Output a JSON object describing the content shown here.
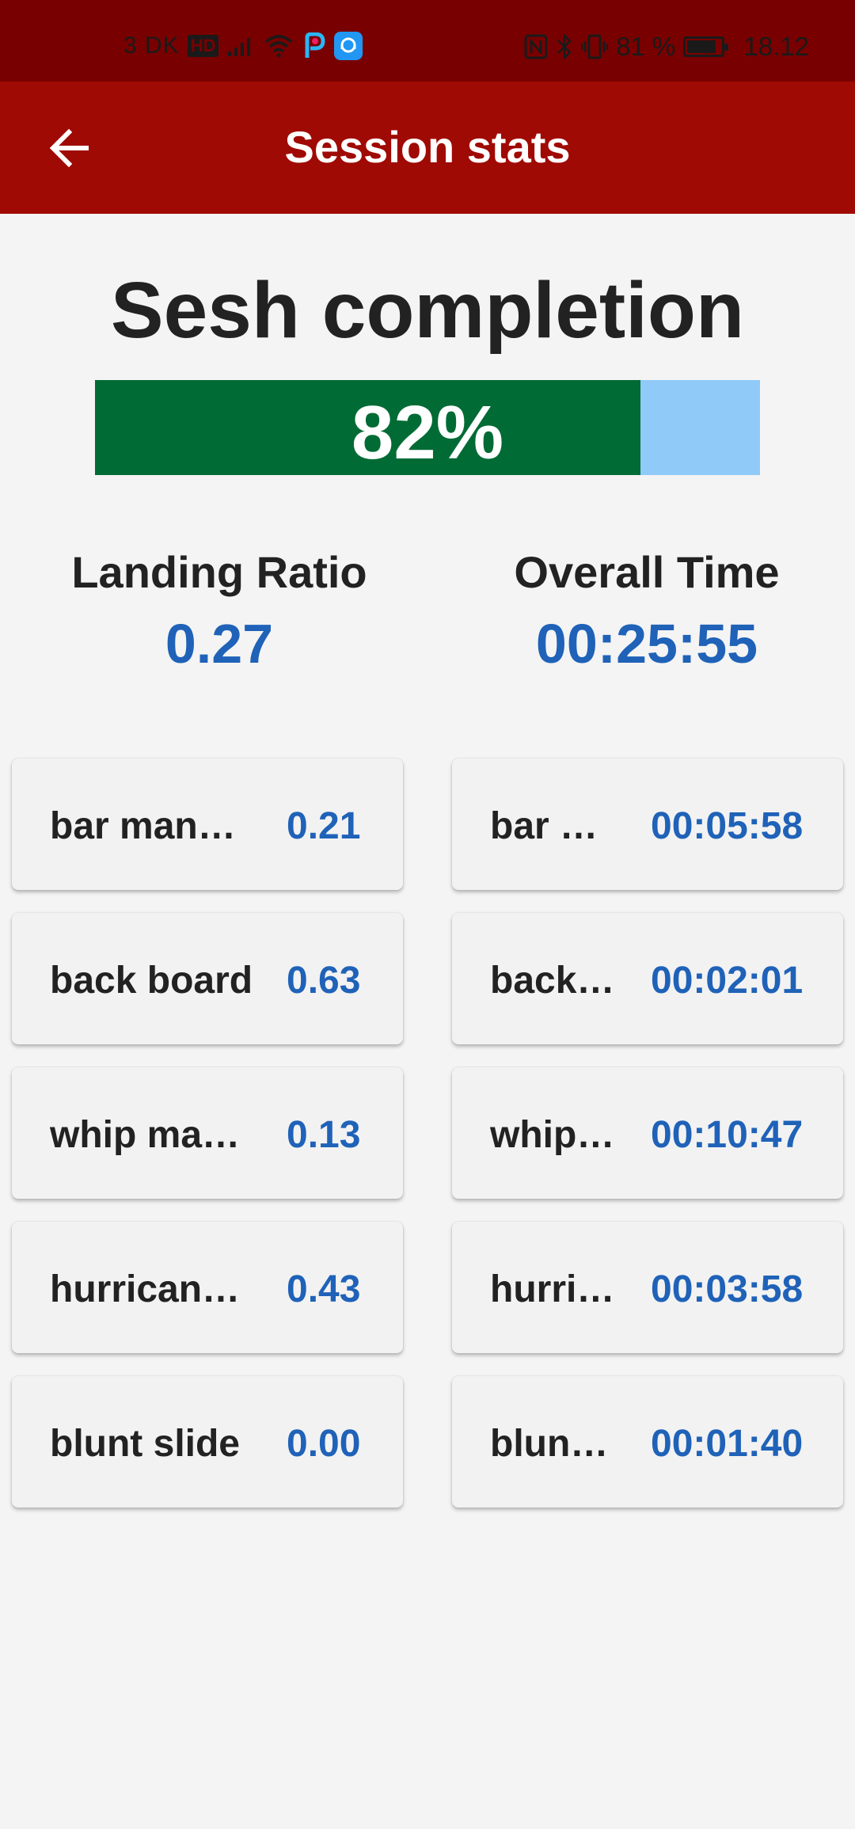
{
  "status_bar": {
    "carrier": "3 DK",
    "hd": "HD",
    "battery_percent": "81 %",
    "time": "18.12",
    "battery_level": 0.81
  },
  "app_bar": {
    "title": "Session stats",
    "back_icon": "arrow-left-icon"
  },
  "completion": {
    "heading": "Sesh completion",
    "percent_label": "82%",
    "fraction": 0.82,
    "bar_color": "#006b34",
    "track_color": "#90caf9"
  },
  "summary": {
    "landing_ratio_label": "Landing Ratio",
    "landing_ratio_value": "0.27",
    "overall_time_label": "Overall Time",
    "overall_time_value": "00:25:55"
  },
  "ratios": [
    {
      "name": "bar manny…",
      "value": "0.21"
    },
    {
      "name": "back board",
      "value": "0.63"
    },
    {
      "name": "whip man…",
      "value": "0.13"
    },
    {
      "name": "hurricane …",
      "value": "0.43"
    },
    {
      "name": "blunt slide",
      "value": "0.00"
    }
  ],
  "times": [
    {
      "name": "bar …",
      "value": "00:05:58"
    },
    {
      "name": "back …",
      "value": "00:02:01"
    },
    {
      "name": "whip …",
      "value": "00:10:47"
    },
    {
      "name": "hurric…",
      "value": "00:03:58"
    },
    {
      "name": "blunt …",
      "value": "00:01:40"
    }
  ],
  "colors": {
    "app_bar": "#a00a04",
    "status_bar": "#790000",
    "value_blue": "#1f62b8"
  }
}
